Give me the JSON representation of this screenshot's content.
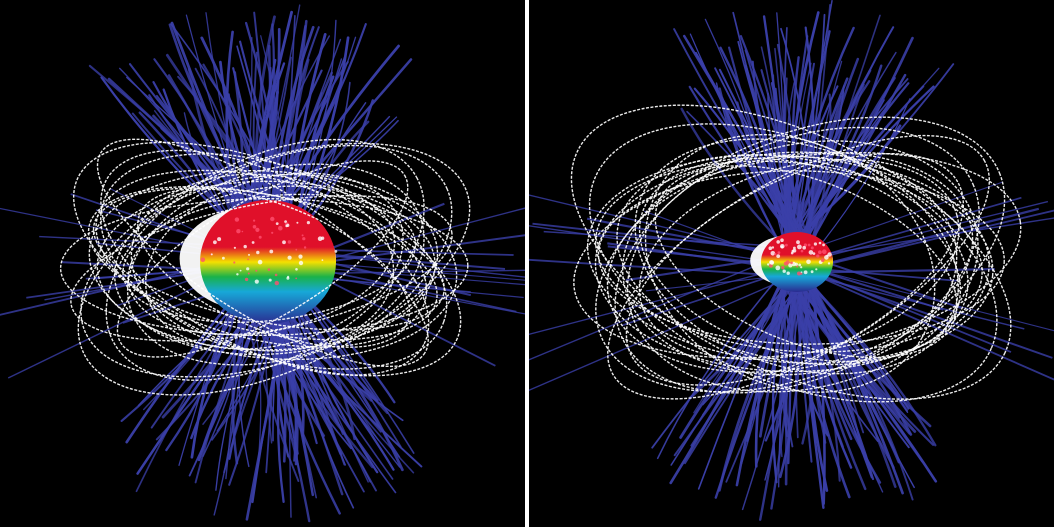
{
  "figure": {
    "panels": [
      {
        "id": "left",
        "description_name": "stellar-magnetic-field-model-large",
        "open_field_line_count": 170,
        "closed_loop_count": 22
      },
      {
        "id": "right",
        "description_name": "stellar-magnetic-field-model-small",
        "open_field_line_count": 150,
        "closed_loop_count": 20
      }
    ],
    "colors": {
      "background": "#000000",
      "separator": "#ffffff",
      "open_field_lines": "#3a3fa8",
      "closed_field_lines": "#ffffff",
      "surface_hot": "#e0102a",
      "surface_mid": "#f5e000",
      "surface_low": "#19b24a",
      "surface_cool": "#17a8d8",
      "surface_deep": "#2a2a90"
    }
  }
}
